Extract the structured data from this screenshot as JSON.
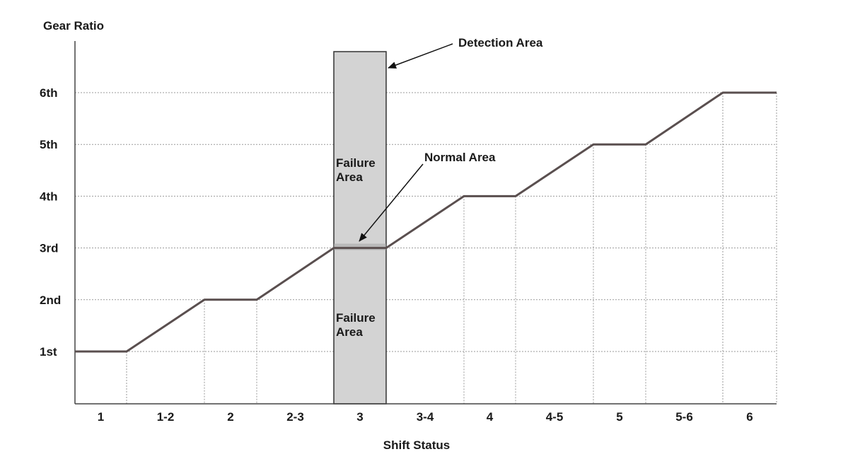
{
  "chart_data": {
    "type": "line",
    "xlabel": "Shift Status",
    "ylabel": "Gear Ratio",
    "categories": [
      "1",
      "1-2",
      "2",
      "2-3",
      "3",
      "3-4",
      "4",
      "4-5",
      "5",
      "5-6",
      "6"
    ],
    "y_tick_labels": [
      "1st",
      "2nd",
      "3rd",
      "4th",
      "5th",
      "6th"
    ],
    "y_values": [
      1,
      1.5,
      2,
      2.5,
      3,
      3.5,
      4,
      4.5,
      5,
      5.5,
      6
    ],
    "ylim": [
      0.2,
      6.8
    ],
    "grid": "horizontal dotted at gear levels; vertical dotted at plateau ends",
    "line_color": "#5a4f4f",
    "detection_area": {
      "category": "3",
      "label": "Detection Area",
      "fill": "#d3d3d3",
      "failure_label_upper": "Failure\nArea",
      "failure_label_lower": "Failure\nArea",
      "normal_label": "Normal Area",
      "normal_gear": 3
    }
  }
}
